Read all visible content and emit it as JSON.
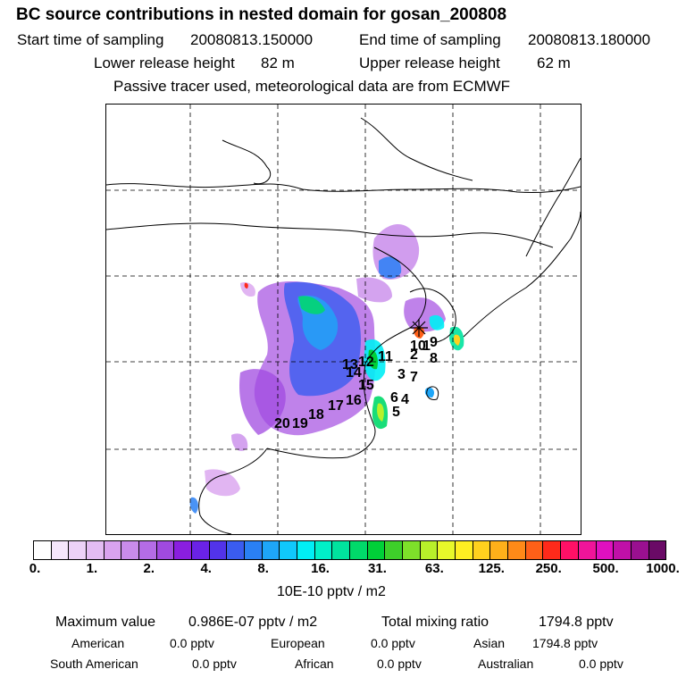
{
  "header": {
    "title": "BC  source contributions in nested domain for gosan_200808",
    "start_label": "Start time of sampling",
    "start_value": "20080813.150000",
    "end_label": "End time of sampling",
    "end_value": "20080813.180000",
    "lower_label": "Lower release height",
    "lower_value": "82 m",
    "upper_label": "Upper release height",
    "upper_value": "62 m",
    "note": "Passive tracer used, meteorological data are from ECMWF"
  },
  "map": {
    "source_labels": [
      "1",
      "2",
      "3",
      "4",
      "5",
      "6",
      "7",
      "8",
      "9",
      "10",
      "11",
      "12",
      "13",
      "14",
      "15",
      "16",
      "17",
      "18",
      "19",
      "20"
    ]
  },
  "colorbar": {
    "colors": [
      "#ffffff",
      "#f5e6fb",
      "#ecd2f7",
      "#e3bcf3",
      "#d9a3ef",
      "#c98ceb",
      "#b46ce6",
      "#a04ae0",
      "#8a1ee0",
      "#6a22e6",
      "#5233ea",
      "#3a5cf0",
      "#2a80f4",
      "#1ea6f8",
      "#10c8fb",
      "#00eef5",
      "#00f0c8",
      "#00e39e",
      "#00d96a",
      "#00d038",
      "#3ecf2a",
      "#7ee02a",
      "#b8f02a",
      "#e8f82a",
      "#ffee22",
      "#ffd11e",
      "#ffb01a",
      "#ff8a18",
      "#ff6018",
      "#ff2a1a",
      "#ff1066",
      "#f0149a",
      "#e010c0",
      "#c010a8",
      "#9a1090",
      "#6a0a66"
    ],
    "ticks": [
      "0.",
      "1.",
      "2.",
      "4.",
      "8.",
      "16.",
      "31.",
      "63.",
      "125.",
      "250.",
      "500.",
      "1000."
    ],
    "units": "10E-10 pptv / m2"
  },
  "footer": {
    "max_label": "Maximum value",
    "max_value": "0.986E-07 pptv / m2",
    "total_label": "Total mixing ratio",
    "total_value": "1794.8 pptv",
    "american_label": "American",
    "american_value": "0.0 pptv",
    "european_label": "European",
    "european_value": "0.0 pptv",
    "asian_label": "Asian",
    "asian_value": "1794.8 pptv",
    "south_american_label": "South American",
    "south_american_value": "0.0 pptv",
    "african_label": "African",
    "african_value": "0.0 pptv",
    "australian_label": "Australian",
    "australian_value": "0.0 pptv"
  }
}
